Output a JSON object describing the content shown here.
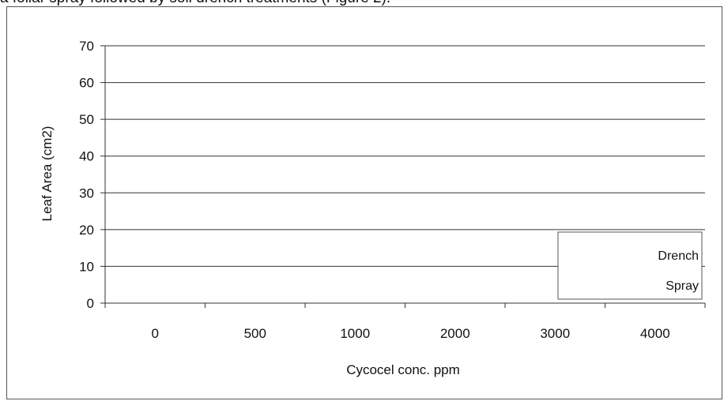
{
  "caption": "a foliar spray followed by soil drench treatments (Figure 2).",
  "chart_data": {
    "type": "bar",
    "title": "",
    "xlabel": "Cycocel conc. ppm",
    "ylabel": "Leaf Area (cm2)",
    "categories": [
      "0",
      "500",
      "1000",
      "2000",
      "3000",
      "4000"
    ],
    "ylim": [
      0,
      70
    ],
    "yticks": [
      0,
      10,
      20,
      30,
      40,
      50,
      60,
      70
    ],
    "grid": true,
    "legend_position": "bottom-right",
    "series": [
      {
        "name": "Drench",
        "values": [
          0,
          0,
          0,
          0,
          0,
          0
        ]
      },
      {
        "name": "Spray",
        "values": [
          0,
          0,
          0,
          0,
          0,
          0
        ]
      }
    ]
  }
}
